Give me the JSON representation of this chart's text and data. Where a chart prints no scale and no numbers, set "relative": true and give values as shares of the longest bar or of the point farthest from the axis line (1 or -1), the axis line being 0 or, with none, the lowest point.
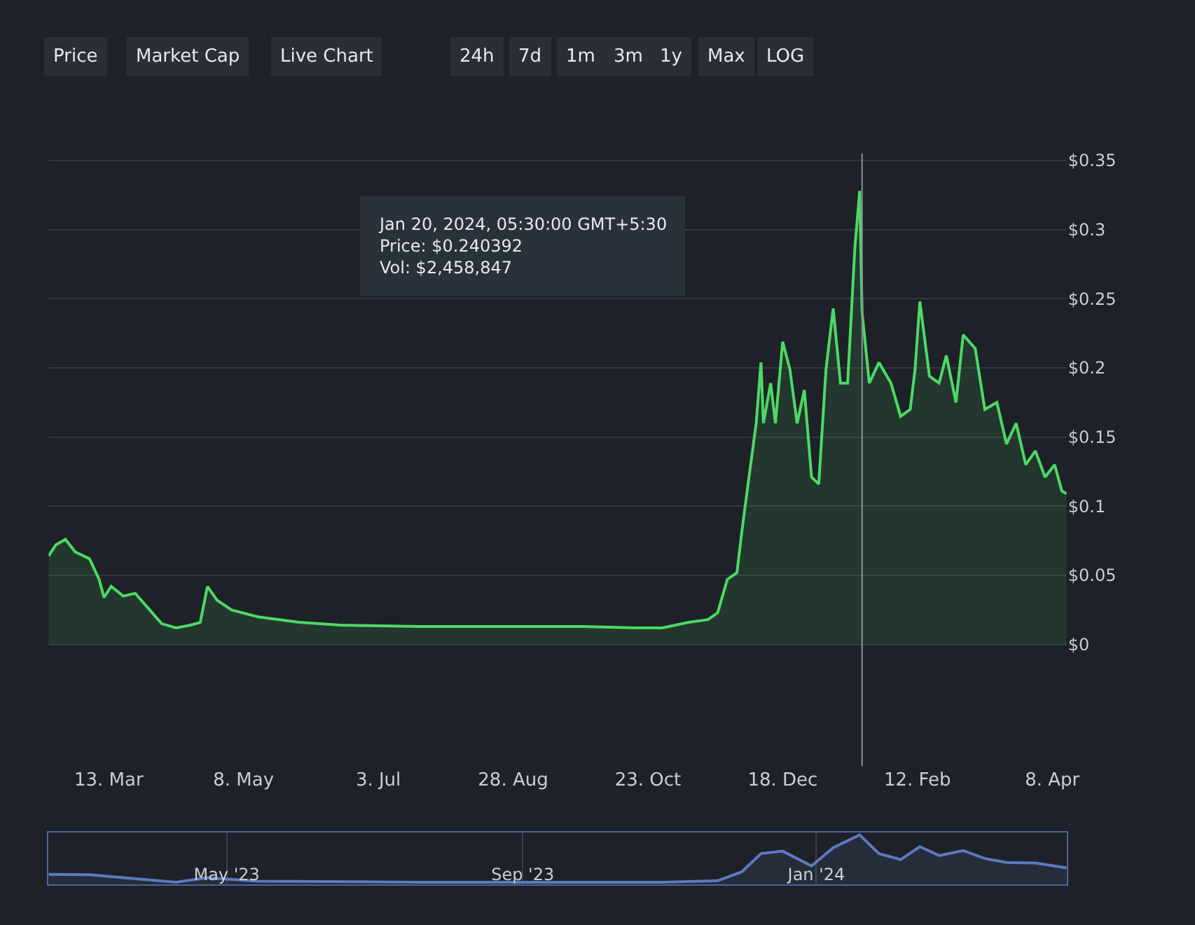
{
  "chart_data": [
    {
      "type": "area",
      "x": [
        "2023-02-16",
        "2023-02-19",
        "2023-02-23",
        "2023-02-27",
        "2023-03-05",
        "2023-03-09",
        "2023-03-11",
        "2023-03-14",
        "2023-03-19",
        "2023-03-24",
        "2023-03-30",
        "2023-04-04",
        "2023-04-10",
        "2023-04-16",
        "2023-04-20",
        "2023-04-23",
        "2023-04-27",
        "2023-05-03",
        "2023-05-14",
        "2023-05-31",
        "2023-06-17",
        "2023-07-20",
        "2023-08-23",
        "2023-09-26",
        "2023-10-18",
        "2023-10-29",
        "2023-11-09",
        "2023-11-17",
        "2023-11-21",
        "2023-11-25",
        "2023-11-29",
        "2023-12-01",
        "2023-12-04",
        "2023-12-07",
        "2023-12-09",
        "2023-12-10",
        "2023-12-13",
        "2023-12-15",
        "2023-12-18",
        "2023-12-21",
        "2023-12-24",
        "2023-12-27",
        "2023-12-30",
        "2024-01-02",
        "2024-01-05",
        "2024-01-08",
        "2024-01-11",
        "2024-01-14",
        "2024-01-17",
        "2024-01-19",
        "2024-01-20",
        "2024-01-23",
        "2024-01-27",
        "2024-02-01",
        "2024-02-05",
        "2024-02-09",
        "2024-02-11",
        "2024-02-13",
        "2024-02-17",
        "2024-02-21",
        "2024-02-24",
        "2024-02-28",
        "2024-03-02",
        "2024-03-07",
        "2024-03-11",
        "2024-03-16",
        "2024-03-20",
        "2024-03-24",
        "2024-03-28",
        "2024-04-01",
        "2024-04-05",
        "2024-04-09",
        "2024-04-12",
        "2024-04-14"
      ],
      "series": [
        {
          "color": "#4cd964",
          "values": [
            0.064,
            0.072,
            0.076,
            0.067,
            0.062,
            0.047,
            0.034,
            0.042,
            0.035,
            0.037,
            0.025,
            0.015,
            0.012,
            0.014,
            0.016,
            0.042,
            0.032,
            0.025,
            0.02,
            0.016,
            0.014,
            0.013,
            0.013,
            0.013,
            0.012,
            0.012,
            0.016,
            0.018,
            0.023,
            0.047,
            0.052,
            0.081,
            0.121,
            0.16,
            0.204,
            0.16,
            0.189,
            0.16,
            0.219,
            0.199,
            0.16,
            0.184,
            0.121,
            0.116,
            0.199,
            0.243,
            0.189,
            0.189,
            0.287,
            0.328,
            0.24,
            0.189,
            0.204,
            0.189,
            0.165,
            0.17,
            0.199,
            0.248,
            0.194,
            0.189,
            0.209,
            0.175,
            0.224,
            0.214,
            0.17,
            0.175,
            0.145,
            0.16,
            0.13,
            0.14,
            0.121,
            0.13,
            0.111,
            0.109
          ]
        }
      ],
      "xlim": [
        "2023-02-16",
        "2024-04-14"
      ],
      "xticks": [
        {
          "value": "2023-03-13",
          "label": "13. Mar"
        },
        {
          "value": "2023-05-08",
          "label": "8. May"
        },
        {
          "value": "2023-07-03",
          "label": "3. Jul"
        },
        {
          "value": "2023-08-28",
          "label": "28. Aug"
        },
        {
          "value": "2023-10-23",
          "label": "23. Oct"
        },
        {
          "value": "2023-12-18",
          "label": "18. Dec"
        },
        {
          "value": "2024-02-12",
          "label": "12. Feb"
        },
        {
          "value": "2024-04-08",
          "label": "8. Apr"
        }
      ],
      "ylim": [
        -0.088,
        0.355
      ],
      "yticks": [
        {
          "value": 0,
          "label": "$0"
        },
        {
          "value": 0.05,
          "label": "$0.05"
        },
        {
          "value": 0.1,
          "label": "$0.1"
        },
        {
          "value": 0.15,
          "label": "$0.15"
        },
        {
          "value": 0.2,
          "label": "$0.2"
        },
        {
          "value": 0.25,
          "label": "$0.25"
        },
        {
          "value": 0.3,
          "label": "$0.3"
        },
        {
          "value": 0.35,
          "label": "$0.35"
        }
      ],
      "grid": "y",
      "marker": "none",
      "line_style": "solid",
      "ref_lines": [
        {
          "axis": "x",
          "value": "2024-01-20",
          "color": "#8a8f98"
        }
      ],
      "annotations": [
        "Price",
        "Market Cap",
        "Live Chart",
        "24h",
        "7d",
        "1m",
        "3m",
        "1y",
        "Max",
        "LOG",
        "Jan 20, 2024, 05:30:00 GMT+5:30\nPrice: $0.240392\nVol: $2,458,847"
      ]
    },
    {
      "type": "area",
      "relative": true,
      "x": [
        "2023-02-16",
        "2023-03-05",
        "2023-04-10",
        "2023-04-23",
        "2023-05-14",
        "2023-07-20",
        "2023-09-26",
        "2023-10-29",
        "2023-11-21",
        "2023-12-01",
        "2023-12-09",
        "2023-12-18",
        "2023-12-30",
        "2024-01-08",
        "2024-01-19",
        "2024-01-27",
        "2024-02-05",
        "2024-02-13",
        "2024-02-21",
        "2024-03-02",
        "2024-03-11",
        "2024-03-20",
        "2024-04-01",
        "2024-04-14"
      ],
      "series": [
        {
          "color": "#5b7bbf",
          "values": [
            0.2,
            0.19,
            0.04,
            0.13,
            0.06,
            0.04,
            0.04,
            0.04,
            0.07,
            0.25,
            0.62,
            0.67,
            0.37,
            0.74,
            1,
            0.62,
            0.5,
            0.76,
            0.58,
            0.68,
            0.52,
            0.44,
            0.43,
            0.33
          ]
        }
      ],
      "xlim": [
        "2023-02-16",
        "2024-04-14"
      ],
      "xticks": [
        {
          "value": "2023-05-01",
          "label": "May '23"
        },
        {
          "value": "2023-09-01",
          "label": "Sep '23"
        },
        {
          "value": "2024-01-01",
          "label": "Jan '24"
        }
      ],
      "grid": "x"
    }
  ]
}
